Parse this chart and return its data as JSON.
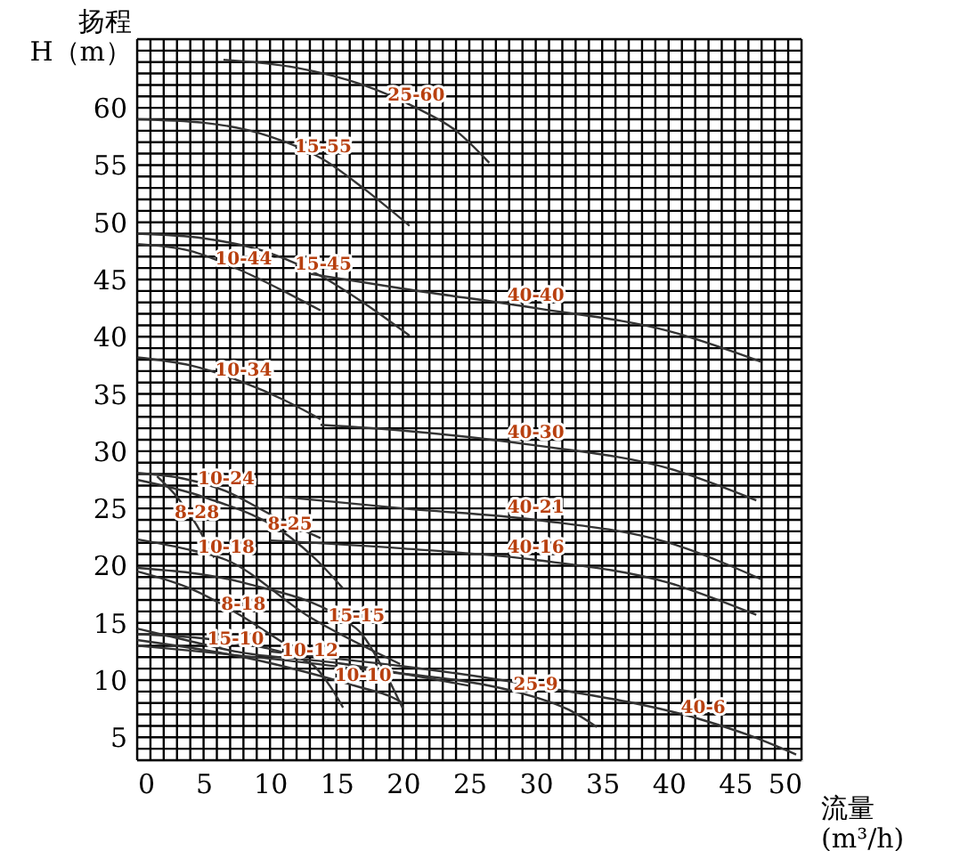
{
  "chart_data": {
    "type": "line",
    "xlabel": "流量\n(m³/h)",
    "ylabel": "扬程\nH（m）",
    "xlim": [
      0,
      50
    ],
    "ylim": [
      3,
      66
    ],
    "grid": true,
    "marker": "none",
    "line_style": "solid",
    "xticks": [
      0,
      5,
      10,
      15,
      20,
      25,
      30,
      35,
      40,
      45,
      50
    ],
    "yticks": [
      5,
      10,
      15,
      20,
      25,
      30,
      35,
      40,
      45,
      50,
      55,
      60
    ],
    "series": [
      {
        "name": "25-60",
        "color": "#333333",
        "x": [
          6.5,
          12,
          17,
          21,
          24,
          26.5
        ],
        "values": [
          64.2,
          63.5,
          62,
          60,
          58,
          55.2
        ]
      },
      {
        "name": "15-55",
        "color": "#333333",
        "x": [
          0,
          5,
          10,
          14,
          17,
          20.5
        ],
        "values": [
          59,
          58.7,
          57.5,
          55.5,
          53,
          49.7
        ]
      },
      {
        "name": "15-45",
        "color": "#333333",
        "x": [
          0,
          5,
          10,
          14,
          17,
          20.5
        ],
        "values": [
          49,
          48.6,
          47.3,
          45.2,
          43,
          40.1
        ]
      },
      {
        "name": "10-44",
        "color": "#333333",
        "x": [
          0,
          4,
          8,
          11,
          13.8
        ],
        "values": [
          48.1,
          47.5,
          45.7,
          44,
          42.3
        ]
      },
      {
        "name": "40-40",
        "color": "#333333",
        "x": [
          13,
          20,
          30,
          40,
          47
        ],
        "values": [
          45.5,
          44.2,
          42.5,
          40.5,
          37.8
        ]
      },
      {
        "name": "10-34",
        "color": "#333333",
        "x": [
          0,
          4,
          8,
          11,
          13.8
        ],
        "values": [
          38.2,
          37.5,
          36,
          34.5,
          32.8
        ]
      },
      {
        "name": "40-30",
        "color": "#333333",
        "x": [
          13.8,
          20,
          30,
          40,
          46.6
        ],
        "values": [
          32.3,
          31.8,
          30.5,
          28.5,
          25.7
        ]
      },
      {
        "name": "10-24",
        "color": "#333333",
        "x": [
          0,
          3.5,
          6.7,
          10,
          13.8
        ],
        "values": [
          28.1,
          27.6,
          26.5,
          24.5,
          22.4
        ]
      },
      {
        "name": "8-28",
        "color": "#333333",
        "x": [
          1.5,
          3,
          4.5,
          5.2,
          5.8
        ],
        "values": [
          27.8,
          26,
          23.5,
          22,
          20.7
        ]
      },
      {
        "name": "8-25",
        "color": "#333333",
        "x": [
          0,
          5,
          11.5,
          13.5,
          15.5
        ],
        "values": [
          27.5,
          26,
          22.5,
          20.5,
          18
        ]
      },
      {
        "name": "40-21",
        "color": "#333333",
        "x": [
          11,
          20,
          30,
          40,
          47
        ],
        "values": [
          26,
          25,
          24,
          22,
          18.8
        ]
      },
      {
        "name": "40-16",
        "color": "#333333",
        "x": [
          10,
          20,
          30,
          40,
          46.6
        ],
        "values": [
          22.2,
          21.5,
          20.5,
          18.5,
          15.7
        ]
      },
      {
        "name": "10-18",
        "color": "#333333",
        "x": [
          0,
          3.5,
          6.7,
          13,
          19.8
        ],
        "values": [
          22.3,
          21.5,
          20.5,
          15.5,
          11.4
        ]
      },
      {
        "name": "8-18",
        "color": "#333333",
        "x": [
          0,
          4,
          8,
          10,
          12
        ],
        "values": [
          19.5,
          18,
          15.5,
          14,
          12.5
        ]
      },
      {
        "name": "15-15",
        "color": "#333333",
        "x": [
          0,
          8,
          16.5,
          18.5,
          20
        ],
        "values": [
          19.8,
          18.5,
          14.5,
          11,
          7.5
        ]
      },
      {
        "name": "10-12",
        "color": "#333333",
        "x": [
          0,
          6,
          13,
          14.5,
          15.5
        ],
        "values": [
          14,
          13.5,
          11.5,
          9.5,
          7.6
        ]
      },
      {
        "name": "15-10",
        "color": "#333333",
        "x": [
          0,
          4,
          7.4,
          15,
          25
        ],
        "values": [
          14.5,
          13.4,
          12.5,
          11.5,
          9.5
        ]
      },
      {
        "name": "10-10",
        "color": "#333333",
        "x": [
          0,
          8,
          17,
          19,
          20
        ],
        "values": [
          13.5,
          12,
          9.3,
          8.6,
          8
        ]
      },
      {
        "name": "25-9",
        "color": "#333333",
        "x": [
          0,
          15,
          30,
          32.5,
          34.6
        ],
        "values": [
          13,
          11.2,
          8.5,
          7.4,
          5.9
        ]
      },
      {
        "name": "40-6",
        "color": "#333333",
        "x": [
          10,
          30,
          42.6,
          46,
          49.6
        ],
        "values": [
          12.5,
          9.5,
          6.5,
          5.2,
          3.5
        ]
      }
    ]
  }
}
